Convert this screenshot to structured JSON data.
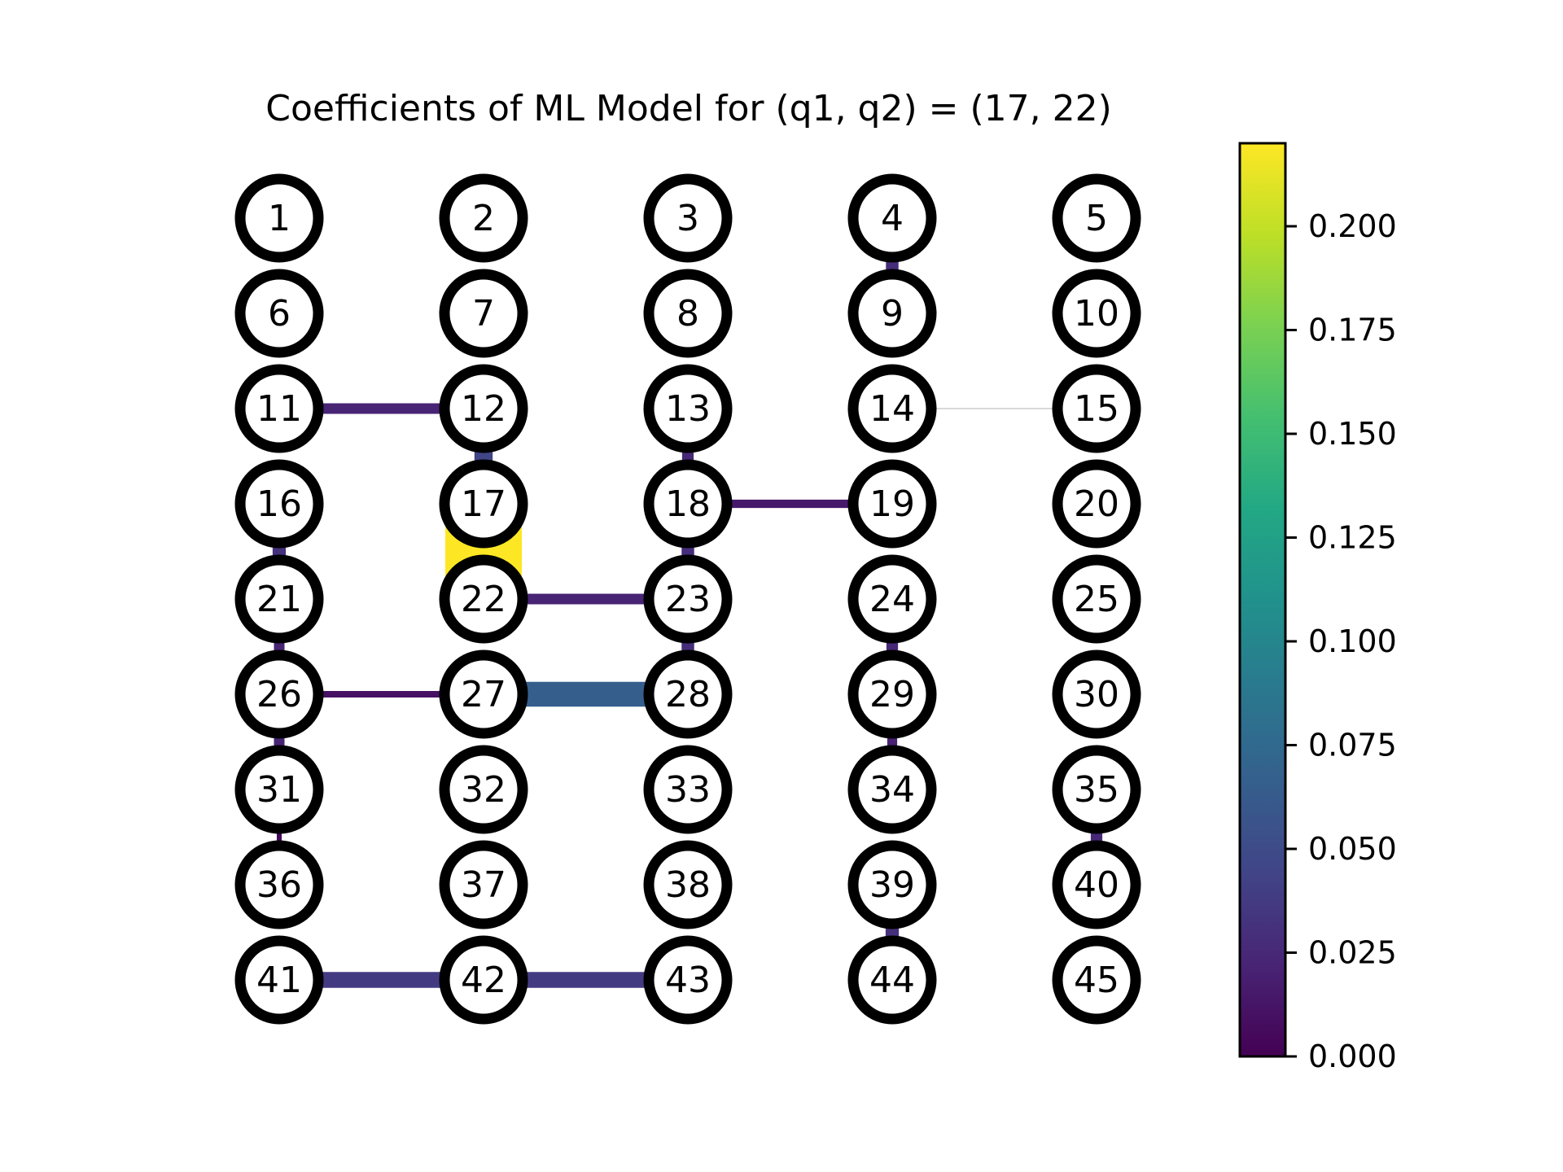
{
  "title": "Coefficients of ML Model for (q1, q2) = (17, 22)",
  "grid": {
    "rows": 9,
    "cols": 5
  },
  "nodes": [
    1,
    2,
    3,
    4,
    5,
    6,
    7,
    8,
    9,
    10,
    11,
    12,
    13,
    14,
    15,
    16,
    17,
    18,
    19,
    20,
    21,
    22,
    23,
    24,
    25,
    26,
    27,
    28,
    29,
    30,
    31,
    32,
    33,
    34,
    35,
    36,
    37,
    38,
    39,
    40,
    41,
    42,
    43,
    44,
    45
  ],
  "edges": [
    {
      "a": 4,
      "b": 9,
      "value": 0.028
    },
    {
      "a": 11,
      "b": 12,
      "value": 0.022
    },
    {
      "a": 12,
      "b": 17,
      "value": 0.045
    },
    {
      "a": 13,
      "b": 18,
      "value": 0.025
    },
    {
      "a": 14,
      "b": 15,
      "value": null
    },
    {
      "a": 16,
      "b": 21,
      "value": 0.03
    },
    {
      "a": 17,
      "b": 22,
      "value": 0.22
    },
    {
      "a": 18,
      "b": 19,
      "value": 0.015
    },
    {
      "a": 18,
      "b": 23,
      "value": 0.028
    },
    {
      "a": 21,
      "b": 26,
      "value": 0.022
    },
    {
      "a": 22,
      "b": 23,
      "value": 0.022
    },
    {
      "a": 23,
      "b": 28,
      "value": 0.028
    },
    {
      "a": 24,
      "b": 29,
      "value": 0.025
    },
    {
      "a": 26,
      "b": 27,
      "value": 0.01
    },
    {
      "a": 26,
      "b": 31,
      "value": 0.022
    },
    {
      "a": 27,
      "b": 28,
      "value": 0.065
    },
    {
      "a": 29,
      "b": 34,
      "value": 0.02
    },
    {
      "a": 31,
      "b": 36,
      "value": 0.005
    },
    {
      "a": 35,
      "b": 40,
      "value": 0.025
    },
    {
      "a": 39,
      "b": 44,
      "value": 0.03
    },
    {
      "a": 41,
      "b": 42,
      "value": 0.038
    },
    {
      "a": 42,
      "b": 43,
      "value": 0.038
    }
  ],
  "colorbar": {
    "colormap": "viridis",
    "range": [
      0,
      0.22
    ],
    "ticks": [
      0.0,
      0.025,
      0.05,
      0.075,
      0.1,
      0.125,
      0.15,
      0.175,
      0.2
    ],
    "tick_labels": [
      "0.000",
      "0.025",
      "0.050",
      "0.075",
      "0.100",
      "0.125",
      "0.150",
      "0.175",
      "0.200"
    ]
  },
  "colors": {
    "null_edge": "#d9d9d9",
    "node_stroke": "#000000",
    "node_fill": "#ffffff"
  }
}
